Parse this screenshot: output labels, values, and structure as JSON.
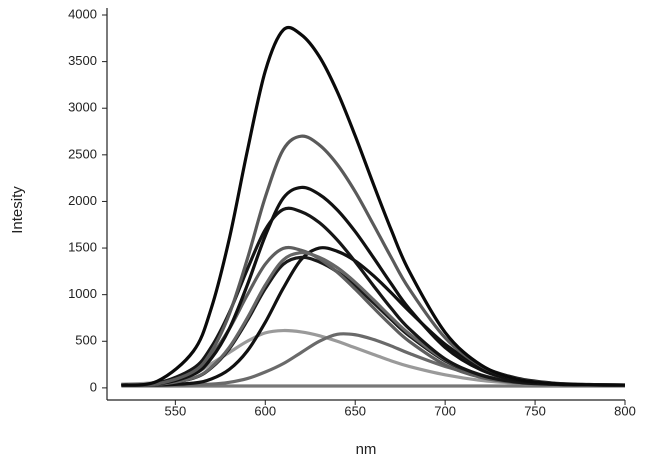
{
  "chart_data": {
    "type": "line",
    "x_label": "nm",
    "y_label": "Intesity",
    "xlim": [
      512,
      800
    ],
    "ylim": [
      -130,
      4000
    ],
    "xticks": [
      550,
      600,
      650,
      700,
      750,
      800
    ],
    "yticks": [
      0,
      500,
      1000,
      1500,
      2000,
      2500,
      3000,
      3500,
      4000
    ],
    "grid": false,
    "x": [
      520,
      540,
      560,
      570,
      580,
      590,
      600,
      610,
      620,
      630,
      640,
      650,
      660,
      670,
      680,
      700,
      720,
      740,
      760,
      780,
      800
    ],
    "series": [
      {
        "color": "#777777",
        "values": [
          20,
          20,
          20,
          20,
          20,
          20,
          20,
          20,
          20,
          20,
          20,
          20,
          20,
          20,
          20,
          20,
          20,
          20,
          20,
          20,
          20
        ]
      },
      {
        "color": "#9a9a9a",
        "values": [
          40,
          60,
          150,
          260,
          380,
          500,
          590,
          615,
          600,
          560,
          500,
          430,
          360,
          290,
          230,
          140,
          80,
          50,
          35,
          30,
          25
        ]
      },
      {
        "color": "#6a6a6a",
        "values": [
          30,
          30,
          35,
          40,
          60,
          100,
          170,
          260,
          380,
          500,
          575,
          570,
          520,
          450,
          370,
          230,
          130,
          70,
          40,
          30,
          25
        ]
      },
      {
        "color": "#111111",
        "values": [
          30,
          31,
          51,
          95,
          198,
          396,
          703,
          1069,
          1378,
          1500,
          1465,
          1362,
          1206,
          1021,
          824,
          468,
          228,
          104,
          52,
          36,
          31
        ]
      },
      {
        "color": "#1a1a1a",
        "values": [
          30,
          37,
          104,
          215,
          420,
          723,
          1064,
          1326,
          1400,
          1352,
          1245,
          1094,
          916,
          733,
          560,
          290,
          135,
          64,
          40,
          32,
          30
        ]
      },
      {
        "color": "#5e5e5e",
        "values": [
          30,
          46,
          170,
          348,
          634,
          996,
          1327,
          1496,
          1476,
          1387,
          1241,
          1059,
          862,
          671,
          500,
          248,
          112,
          55,
          37,
          31,
          30
        ]
      },
      {
        "color": "#666666",
        "values": [
          30,
          37,
          107,
          222,
          435,
          749,
          1102,
          1373,
          1450,
          1400,
          1290,
          1133,
          949,
          758,
          580,
          300,
          139,
          66,
          40,
          32,
          30
        ]
      },
      {
        "color": "#161616",
        "values": [
          30,
          51,
          210,
          438,
          807,
          1272,
          1697,
          1914,
          1890,
          1774,
          1587,
          1353,
          1100,
          854,
          635,
          310,
          136,
          62,
          39,
          32,
          30
        ]
      },
      {
        "color": "#111111",
        "values": [
          30,
          41,
          144,
          316,
          634,
          1103,
          1631,
          2036,
          2150,
          2076,
          1910,
          1677,
          1402,
          1118,
          850,
          433,
          193,
          83,
          45,
          33,
          30
        ]
      },
      {
        "color": "#5a5a5a",
        "values": [
          30,
          43,
          174,
          390,
          791,
          1381,
          2046,
          2556,
          2700,
          2607,
          2398,
          2105,
          1757,
          1400,
          1063,
          537,
          236,
          97,
          49,
          34,
          30
        ]
      },
      {
        "color": "#0a0a0a",
        "values": [
          30,
          72,
          393,
          855,
          1600,
          2540,
          3399,
          3839,
          3789,
          3556,
          3178,
          2704,
          2192,
          1696,
          1252,
          595,
          244,
          95,
          47,
          34,
          30
        ]
      }
    ]
  }
}
